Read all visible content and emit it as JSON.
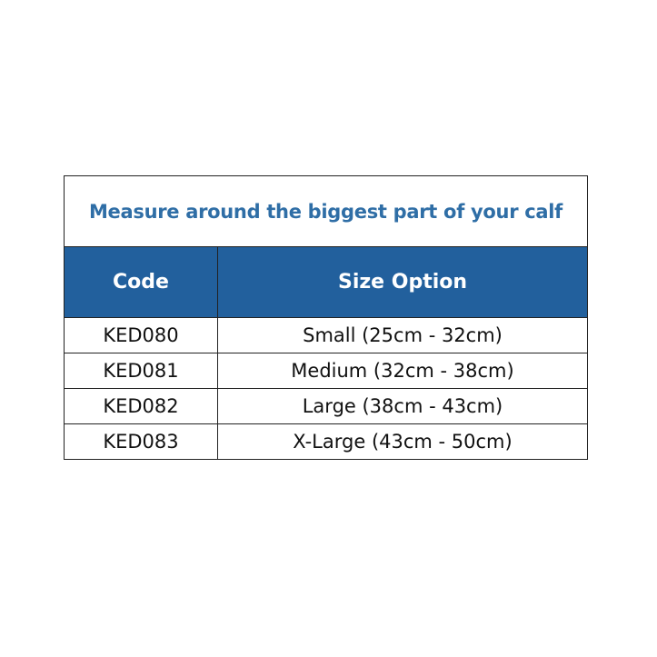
{
  "title": "Measure around the biggest part of your calf",
  "headers": {
    "code": "Code",
    "size": "Size Option"
  },
  "rows": [
    {
      "code": "KED080",
      "size": "Small (25cm - 32cm)"
    },
    {
      "code": "KED081",
      "size": "Medium (32cm - 38cm)"
    },
    {
      "code": "KED082",
      "size": "Large (38cm - 43cm)"
    },
    {
      "code": "KED083",
      "size": "X-Large (43cm - 50cm)"
    }
  ],
  "colors": {
    "title": "#2f6ea6",
    "header_bg": "#22609d",
    "header_text": "#ffffff"
  }
}
